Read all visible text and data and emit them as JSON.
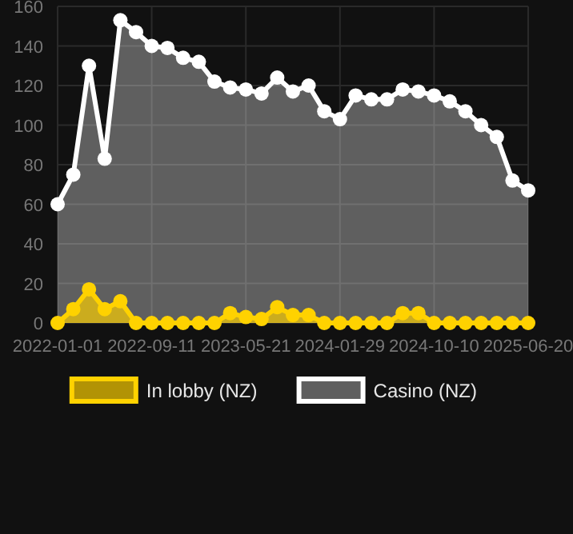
{
  "chart_data": {
    "type": "area",
    "categories": [
      "2022-01-01",
      null,
      null,
      null,
      null,
      null,
      "2022-09-11",
      null,
      null,
      null,
      null,
      null,
      "2023-05-21",
      null,
      null,
      null,
      null,
      null,
      "2024-01-29",
      null,
      null,
      null,
      null,
      null,
      "2024-10-10",
      null,
      null,
      null,
      null,
      null,
      "2025-06-20"
    ],
    "series": [
      {
        "name": "In lobby (NZ)",
        "color": "#ffd200",
        "values": [
          0,
          7,
          17,
          7,
          11,
          0,
          0,
          0,
          0,
          0,
          0,
          5,
          3,
          2,
          8,
          4,
          4,
          0,
          0,
          0,
          0,
          0,
          5,
          5,
          0,
          0,
          0,
          0,
          0,
          0,
          0
        ]
      },
      {
        "name": "Casino (NZ)",
        "color": "#ffffff",
        "values": [
          60,
          75,
          130,
          83,
          153,
          147,
          140,
          139,
          134,
          132,
          122,
          119,
          118,
          116,
          124,
          117,
          120,
          107,
          103,
          115,
          113,
          113,
          118,
          117,
          115,
          112,
          107,
          100,
          94,
          72,
          67
        ]
      }
    ],
    "ylim": [
      0,
      160
    ],
    "yticks": [
      0,
      20,
      40,
      60,
      80,
      100,
      120,
      140,
      160
    ],
    "grid": true,
    "legend": "bottom",
    "marker": "circle"
  }
}
